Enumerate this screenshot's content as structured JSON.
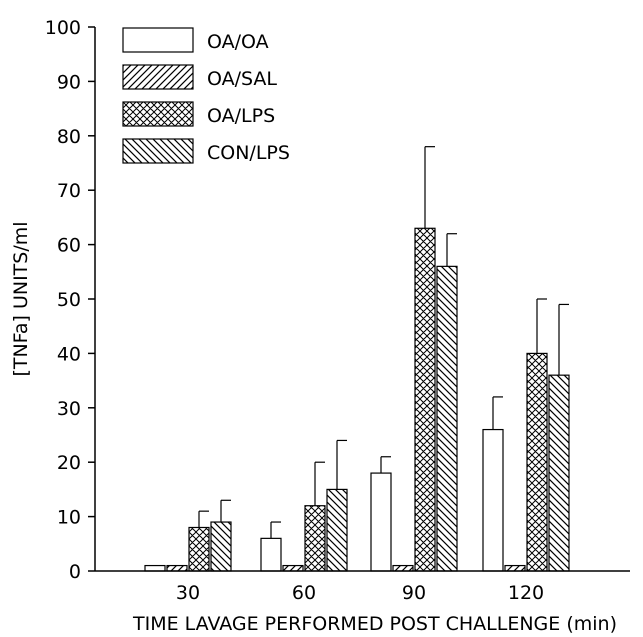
{
  "chart_data": {
    "type": "bar",
    "title": "",
    "xlabel": "TIME LAVAGE PERFORMED POST CHALLENGE (min)",
    "ylabel": "[TNFa] UNITS/ml",
    "ylim": [
      0,
      100
    ],
    "yticks": [
      "0",
      "10",
      "20",
      "30",
      "40",
      "50",
      "60",
      "70",
      "80",
      "90",
      "100"
    ],
    "categories": [
      "30",
      "60",
      "90",
      "120"
    ],
    "legend_position": "top-left",
    "series": [
      {
        "name": "OA/OA",
        "pattern": "none",
        "values": [
          1,
          6,
          18,
          26
        ],
        "errors": [
          0,
          3,
          3,
          6
        ]
      },
      {
        "name": "OA/SAL",
        "pattern": "diagonal",
        "values": [
          1,
          1,
          1,
          1
        ],
        "errors": [
          0,
          0,
          0,
          0
        ]
      },
      {
        "name": "OA/LPS",
        "pattern": "crosshatch",
        "values": [
          8,
          12,
          63,
          40
        ],
        "errors": [
          3,
          8,
          15,
          10
        ]
      },
      {
        "name": "CON/LPS",
        "pattern": "backdiagonal",
        "values": [
          9,
          15,
          56,
          36
        ],
        "errors": [
          4,
          9,
          6,
          13
        ]
      }
    ]
  }
}
